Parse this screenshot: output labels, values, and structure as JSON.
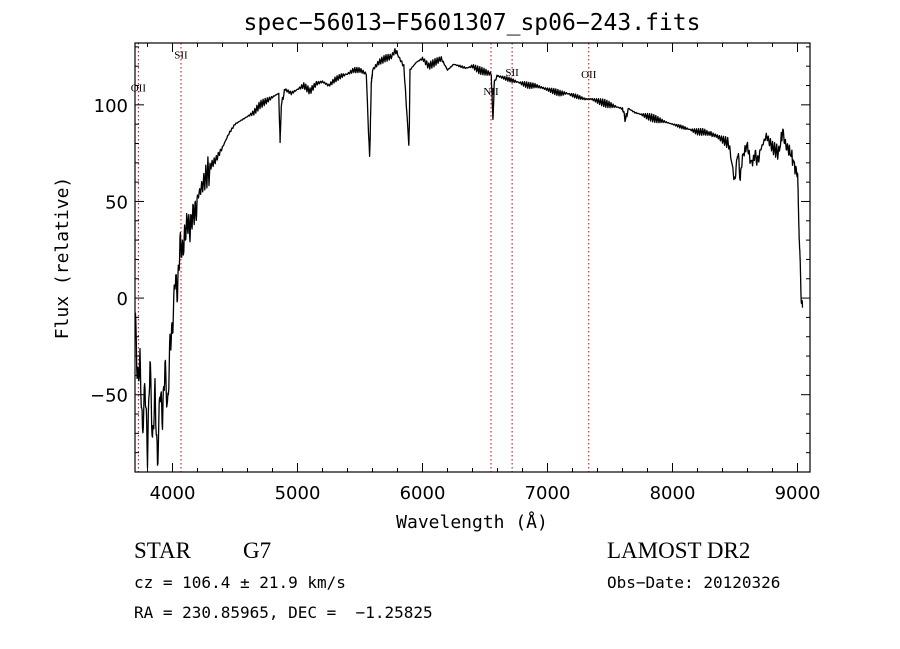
{
  "chart_data": {
    "type": "line",
    "title": "spec−56013−F5601307_sp06−243.fits",
    "xlabel": "Wavelength (Å)",
    "ylabel": "Flux (relative)",
    "xlim": [
      3700,
      9100
    ],
    "ylim": [
      -90,
      132
    ],
    "x_ticks": [
      4000,
      5000,
      6000,
      7000,
      8000,
      9000
    ],
    "x_tick_labels": [
      "4000",
      "5000",
      "6000",
      "7000",
      "8000",
      "9000"
    ],
    "y_ticks": [
      -50,
      0,
      50,
      100
    ],
    "y_tick_labels": [
      "−50",
      "0",
      "50",
      "100"
    ],
    "grid": false,
    "line_color": "#000000",
    "marker_color": "#cc0000",
    "series": [
      {
        "x": [
          3700,
          3720,
          3740,
          3760,
          3780,
          3800,
          3820,
          3840,
          3860,
          3880,
          3900,
          3920,
          3940,
          3960,
          3980,
          4000,
          4020,
          4040,
          4060,
          4080,
          4100,
          4120,
          4140,
          4160,
          4180,
          4200,
          4250,
          4300,
          4350,
          4400,
          4450,
          4500,
          4550,
          4600,
          4650,
          4700,
          4750,
          4800,
          4850,
          4861,
          4870,
          4900,
          4950,
          5000,
          5050,
          5100,
          5150,
          5200,
          5250,
          5300,
          5350,
          5400,
          5450,
          5500,
          5550,
          5577,
          5590,
          5600,
          5650,
          5700,
          5750,
          5780,
          5800,
          5850,
          5890,
          5895,
          5900,
          5950,
          6000,
          6050,
          6100,
          6150,
          6200,
          6250,
          6300,
          6350,
          6400,
          6450,
          6500,
          6550,
          6563,
          6575,
          6600,
          6650,
          6700,
          6750,
          6800,
          6850,
          6900,
          6950,
          7000,
          7050,
          7100,
          7150,
          7200,
          7250,
          7300,
          7350,
          7400,
          7450,
          7500,
          7550,
          7600,
          7620,
          7650,
          7700,
          7750,
          7800,
          7850,
          7900,
          7950,
          8000,
          8050,
          8100,
          8150,
          8200,
          8250,
          8300,
          8350,
          8400,
          8450,
          8498,
          8520,
          8542,
          8560,
          8600,
          8620,
          8662,
          8680,
          8700,
          8750,
          8800,
          8850,
          8880,
          8900,
          8920,
          8950,
          8980,
          9000,
          9010,
          9020,
          9030,
          9040
        ],
        "values": [
          0,
          -40,
          -30,
          -70,
          -45,
          -85,
          -35,
          -80,
          -50,
          -88,
          -45,
          -60,
          -30,
          -55,
          -20,
          -15,
          10,
          0,
          25,
          20,
          30,
          38,
          35,
          45,
          48,
          52,
          60,
          68,
          72,
          78,
          85,
          90,
          92,
          94,
          96,
          100,
          102,
          104,
          106,
          80,
          100,
          108,
          106,
          108,
          110,
          107,
          111,
          112,
          110,
          113,
          115,
          116,
          118,
          118,
          116,
          72,
          110,
          118,
          122,
          124,
          125,
          128,
          126,
          120,
          80,
          90,
          118,
          122,
          124,
          120,
          122,
          124,
          118,
          121,
          120,
          119,
          120,
          118,
          117,
          116,
          92,
          112,
          115,
          114,
          113,
          112,
          111,
          110,
          110,
          109,
          108,
          107,
          106,
          106,
          105,
          104,
          103,
          103,
          102,
          101,
          100,
          99,
          98,
          92,
          98,
          96,
          95,
          94,
          93,
          92,
          91,
          90,
          89,
          88,
          87,
          86,
          86,
          85,
          84,
          82,
          80,
          60,
          76,
          62,
          72,
          78,
          70,
          74,
          72,
          76,
          84,
          78,
          75,
          86,
          80,
          78,
          74,
          68,
          66,
          40,
          20,
          0,
          -5
        ]
      }
    ],
    "lines": [
      {
        "label": "SII",
        "x": 4068,
        "label_y": 124
      },
      {
        "label": "OII",
        "x": 3727,
        "label_y": 107
      },
      {
        "label": "NII",
        "x": 6548,
        "label_y": 105
      },
      {
        "label": "SII",
        "x": 6717,
        "label_y": 115
      },
      {
        "label": "OII",
        "x": 7330,
        "label_y": 114
      }
    ]
  },
  "info": {
    "object_class": "STAR",
    "subclass": "G7",
    "redshift": "cz = 106.4 ± 21.9 km/s",
    "coordinates": "RA = 230.85965, DEC =  −1.25825",
    "survey": "LAMOST DR2",
    "obs_date": "Obs−Date: 20120326"
  }
}
